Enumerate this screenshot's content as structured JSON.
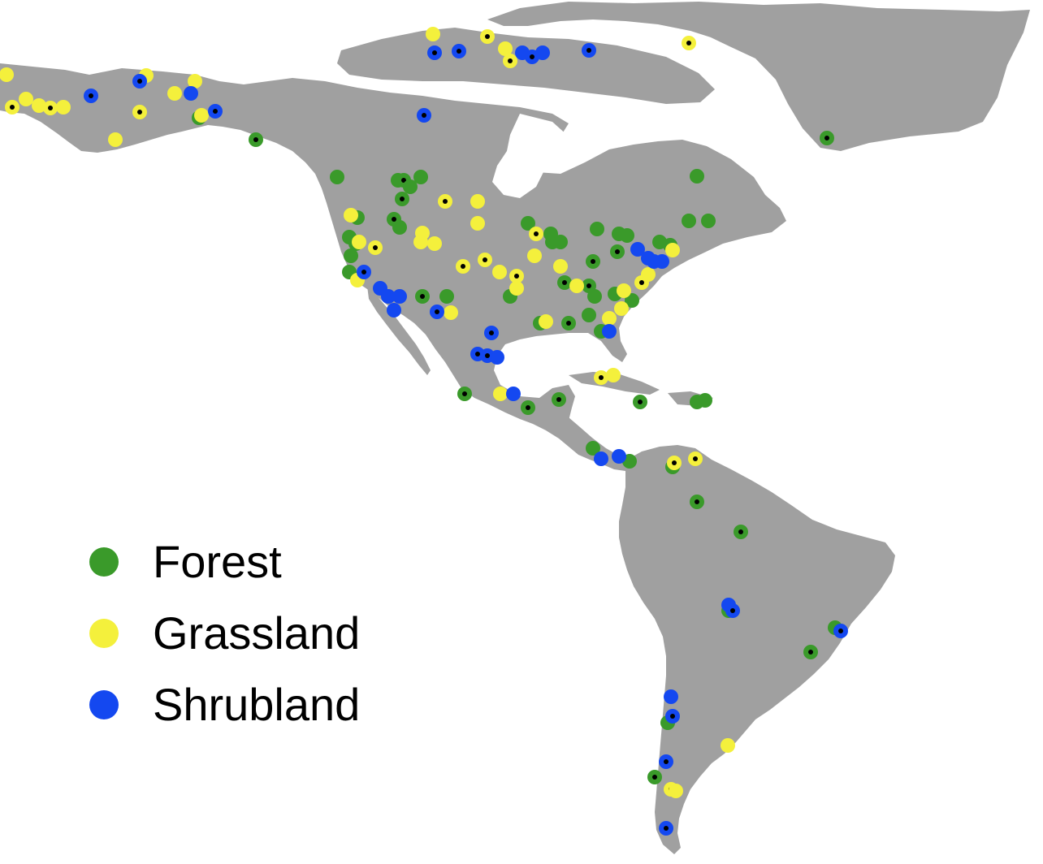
{
  "map": {
    "land_color": "#a0a0a0",
    "water_color": "#ffffff"
  },
  "legend": [
    {
      "label": "Forest",
      "color": "#3a9a2a"
    },
    {
      "label": "Grassland",
      "color": "#f4f03c"
    },
    {
      "label": "Shrubland",
      "color": "#1448f0"
    }
  ],
  "sites": {
    "forest": [
      {
        "coords": [
          315,
          172
        ],
        "black_dot": true
      },
      {
        "coords": [
          415,
          218
        ],
        "black_dot": false
      },
      {
        "coords": [
          490,
          222
        ],
        "black_dot": false
      },
      {
        "coords": [
          497,
          222
        ],
        "black_dot": true
      },
      {
        "coords": [
          518,
          218
        ],
        "black_dot": false
      },
      {
        "coords": [
          505,
          230
        ],
        "black_dot": false
      },
      {
        "coords": [
          495,
          245
        ],
        "black_dot": true
      },
      {
        "coords": [
          440,
          268
        ],
        "black_dot": false
      },
      {
        "coords": [
          485,
          270
        ],
        "black_dot": true
      },
      {
        "coords": [
          492,
          280
        ],
        "black_dot": false
      },
      {
        "coords": [
          430,
          292
        ],
        "black_dot": false
      },
      {
        "coords": [
          438,
          300
        ],
        "black_dot": false
      },
      {
        "coords": [
          432,
          315
        ],
        "black_dot": false
      },
      {
        "coords": [
          430,
          335
        ],
        "black_dot": false
      },
      {
        "coords": [
          858,
          217
        ],
        "black_dot": false
      },
      {
        "coords": [
          1018,
          170
        ],
        "black_dot": true
      },
      {
        "coords": [
          650,
          275
        ],
        "black_dot": false
      },
      {
        "coords": [
          678,
          288
        ],
        "black_dot": false
      },
      {
        "coords": [
          690,
          298
        ],
        "black_dot": false
      },
      {
        "coords": [
          680,
          298
        ],
        "black_dot": false
      },
      {
        "coords": [
          735,
          282
        ],
        "black_dot": false
      },
      {
        "coords": [
          762,
          288
        ],
        "black_dot": false
      },
      {
        "coords": [
          772,
          290
        ],
        "black_dot": false
      },
      {
        "coords": [
          760,
          310
        ],
        "black_dot": true
      },
      {
        "coords": [
          730,
          322
        ],
        "black_dot": true
      },
      {
        "coords": [
          812,
          298
        ],
        "black_dot": false
      },
      {
        "coords": [
          848,
          272
        ],
        "black_dot": false
      },
      {
        "coords": [
          872,
          272
        ],
        "black_dot": false
      },
      {
        "coords": [
          825,
          302
        ],
        "black_dot": false
      },
      {
        "coords": [
          520,
          365
        ],
        "black_dot": true
      },
      {
        "coords": [
          550,
          365
        ],
        "black_dot": false
      },
      {
        "coords": [
          628,
          365
        ],
        "black_dot": false
      },
      {
        "coords": [
          695,
          348
        ],
        "black_dot": true
      },
      {
        "coords": [
          725,
          352
        ],
        "black_dot": true
      },
      {
        "coords": [
          732,
          365
        ],
        "black_dot": false
      },
      {
        "coords": [
          757,
          362
        ],
        "black_dot": false
      },
      {
        "coords": [
          778,
          370
        ],
        "black_dot": false
      },
      {
        "coords": [
          665,
          398
        ],
        "black_dot": false
      },
      {
        "coords": [
          700,
          398
        ],
        "black_dot": true
      },
      {
        "coords": [
          725,
          388
        ],
        "black_dot": false
      },
      {
        "coords": [
          740,
          408
        ],
        "black_dot": false
      },
      {
        "coords": [
          245,
          145
        ],
        "black_dot": false
      },
      {
        "coords": [
          572,
          485
        ],
        "black_dot": true
      },
      {
        "coords": [
          650,
          502
        ],
        "black_dot": true
      },
      {
        "coords": [
          688,
          492
        ],
        "black_dot": true
      },
      {
        "coords": [
          788,
          495
        ],
        "black_dot": true
      },
      {
        "coords": [
          858,
          495
        ],
        "black_dot": false
      },
      {
        "coords": [
          868,
          493
        ],
        "black_dot": false
      },
      {
        "coords": [
          730,
          552
        ],
        "black_dot": false
      },
      {
        "coords": [
          775,
          568
        ],
        "black_dot": false
      },
      {
        "coords": [
          828,
          575
        ],
        "black_dot": false
      },
      {
        "coords": [
          858,
          618
        ],
        "black_dot": true
      },
      {
        "coords": [
          912,
          655
        ],
        "black_dot": true
      },
      {
        "coords": [
          897,
          752
        ],
        "black_dot": false
      },
      {
        "coords": [
          1028,
          773
        ],
        "black_dot": false
      },
      {
        "coords": [
          998,
          803
        ],
        "black_dot": true
      },
      {
        "coords": [
          822,
          890
        ],
        "black_dot": false
      },
      {
        "coords": [
          806,
          957
        ],
        "black_dot": true
      }
    ],
    "grassland": [
      {
        "coords": [
          8,
          92
        ],
        "black_dot": false
      },
      {
        "coords": [
          15,
          132
        ],
        "black_dot": true
      },
      {
        "coords": [
          32,
          122
        ],
        "black_dot": false
      },
      {
        "coords": [
          48,
          130
        ],
        "black_dot": false
      },
      {
        "coords": [
          62,
          133
        ],
        "black_dot": true
      },
      {
        "coords": [
          78,
          132
        ],
        "black_dot": false
      },
      {
        "coords": [
          180,
          93
        ],
        "black_dot": false
      },
      {
        "coords": [
          172,
          138
        ],
        "black_dot": true
      },
      {
        "coords": [
          142,
          172
        ],
        "black_dot": false
      },
      {
        "coords": [
          215,
          115
        ],
        "black_dot": false
      },
      {
        "coords": [
          240,
          100
        ],
        "black_dot": false
      },
      {
        "coords": [
          248,
          142
        ],
        "black_dot": false
      },
      {
        "coords": [
          533,
          42
        ],
        "black_dot": false
      },
      {
        "coords": [
          600,
          45
        ],
        "black_dot": true
      },
      {
        "coords": [
          622,
          60
        ],
        "black_dot": false
      },
      {
        "coords": [
          628,
          75
        ],
        "black_dot": true
      },
      {
        "coords": [
          848,
          53
        ],
        "black_dot": true
      },
      {
        "coords": [
          548,
          248
        ],
        "black_dot": true
      },
      {
        "coords": [
          588,
          248
        ],
        "black_dot": false
      },
      {
        "coords": [
          588,
          275
        ],
        "black_dot": false
      },
      {
        "coords": [
          432,
          265
        ],
        "black_dot": false
      },
      {
        "coords": [
          442,
          298
        ],
        "black_dot": false
      },
      {
        "coords": [
          462,
          305
        ],
        "black_dot": true
      },
      {
        "coords": [
          520,
          287
        ],
        "black_dot": false
      },
      {
        "coords": [
          535,
          300
        ],
        "black_dot": false
      },
      {
        "coords": [
          518,
          298
        ],
        "black_dot": false
      },
      {
        "coords": [
          570,
          328
        ],
        "black_dot": true
      },
      {
        "coords": [
          597,
          320
        ],
        "black_dot": true
      },
      {
        "coords": [
          660,
          288
        ],
        "black_dot": true
      },
      {
        "coords": [
          658,
          315
        ],
        "black_dot": false
      },
      {
        "coords": [
          615,
          335
        ],
        "black_dot": false
      },
      {
        "coords": [
          636,
          340
        ],
        "black_dot": true
      },
      {
        "coords": [
          636,
          355
        ],
        "black_dot": false
      },
      {
        "coords": [
          690,
          328
        ],
        "black_dot": false
      },
      {
        "coords": [
          440,
          345
        ],
        "black_dot": false
      },
      {
        "coords": [
          555,
          385
        ],
        "black_dot": false
      },
      {
        "coords": [
          710,
          352
        ],
        "black_dot": false
      },
      {
        "coords": [
          768,
          358
        ],
        "black_dot": false
      },
      {
        "coords": [
          765,
          380
        ],
        "black_dot": false
      },
      {
        "coords": [
          790,
          348
        ],
        "black_dot": true
      },
      {
        "coords": [
          798,
          338
        ],
        "black_dot": false
      },
      {
        "coords": [
          828,
          308
        ],
        "black_dot": false
      },
      {
        "coords": [
          672,
          396
        ],
        "black_dot": false
      },
      {
        "coords": [
          750,
          392
        ],
        "black_dot": false
      },
      {
        "coords": [
          740,
          465
        ],
        "black_dot": true
      },
      {
        "coords": [
          755,
          462
        ],
        "black_dot": false
      },
      {
        "coords": [
          616,
          485
        ],
        "black_dot": false
      },
      {
        "coords": [
          830,
          570
        ],
        "black_dot": true
      },
      {
        "coords": [
          856,
          565
        ],
        "black_dot": true
      },
      {
        "coords": [
          896,
          918
        ],
        "black_dot": false
      },
      {
        "coords": [
          826,
          972
        ],
        "black_dot": true
      },
      {
        "coords": [
          832,
          974
        ],
        "black_dot": false
      }
    ],
    "shrubland": [
      {
        "coords": [
          112,
          118
        ],
        "black_dot": true
      },
      {
        "coords": [
          172,
          100
        ],
        "black_dot": true
      },
      {
        "coords": [
          235,
          115
        ],
        "black_dot": false
      },
      {
        "coords": [
          265,
          137
        ],
        "black_dot": true
      },
      {
        "coords": [
          535,
          65
        ],
        "black_dot": true
      },
      {
        "coords": [
          565,
          63
        ],
        "black_dot": true
      },
      {
        "coords": [
          643,
          65
        ],
        "black_dot": false
      },
      {
        "coords": [
          655,
          70
        ],
        "black_dot": true
      },
      {
        "coords": [
          668,
          65
        ],
        "black_dot": false
      },
      {
        "coords": [
          725,
          62
        ],
        "black_dot": true
      },
      {
        "coords": [
          522,
          142
        ],
        "black_dot": true
      },
      {
        "coords": [
          448,
          335
        ],
        "black_dot": true
      },
      {
        "coords": [
          468,
          355
        ],
        "black_dot": false
      },
      {
        "coords": [
          478,
          365
        ],
        "black_dot": false
      },
      {
        "coords": [
          485,
          382
        ],
        "black_dot": false
      },
      {
        "coords": [
          492,
          365
        ],
        "black_dot": false
      },
      {
        "coords": [
          538,
          384
        ],
        "black_dot": true
      },
      {
        "coords": [
          605,
          410
        ],
        "black_dot": true
      },
      {
        "coords": [
          588,
          436
        ],
        "black_dot": true
      },
      {
        "coords": [
          600,
          438
        ],
        "black_dot": true
      },
      {
        "coords": [
          612,
          440
        ],
        "black_dot": false
      },
      {
        "coords": [
          632,
          485
        ],
        "black_dot": false
      },
      {
        "coords": [
          750,
          408
        ],
        "black_dot": false
      },
      {
        "coords": [
          785,
          307
        ],
        "black_dot": false
      },
      {
        "coords": [
          798,
          318
        ],
        "black_dot": false
      },
      {
        "coords": [
          805,
          322
        ],
        "black_dot": false
      },
      {
        "coords": [
          815,
          322
        ],
        "black_dot": false
      },
      {
        "coords": [
          740,
          565
        ],
        "black_dot": false
      },
      {
        "coords": [
          762,
          562
        ],
        "black_dot": false
      },
      {
        "coords": [
          897,
          745
        ],
        "black_dot": false
      },
      {
        "coords": [
          902,
          752
        ],
        "black_dot": true
      },
      {
        "coords": [
          1035,
          777
        ],
        "black_dot": true
      },
      {
        "coords": [
          826,
          858
        ],
        "black_dot": false
      },
      {
        "coords": [
          828,
          882
        ],
        "black_dot": true
      },
      {
        "coords": [
          820,
          938
        ],
        "black_dot": true
      },
      {
        "coords": [
          820,
          1020
        ],
        "black_dot": true
      }
    ]
  }
}
